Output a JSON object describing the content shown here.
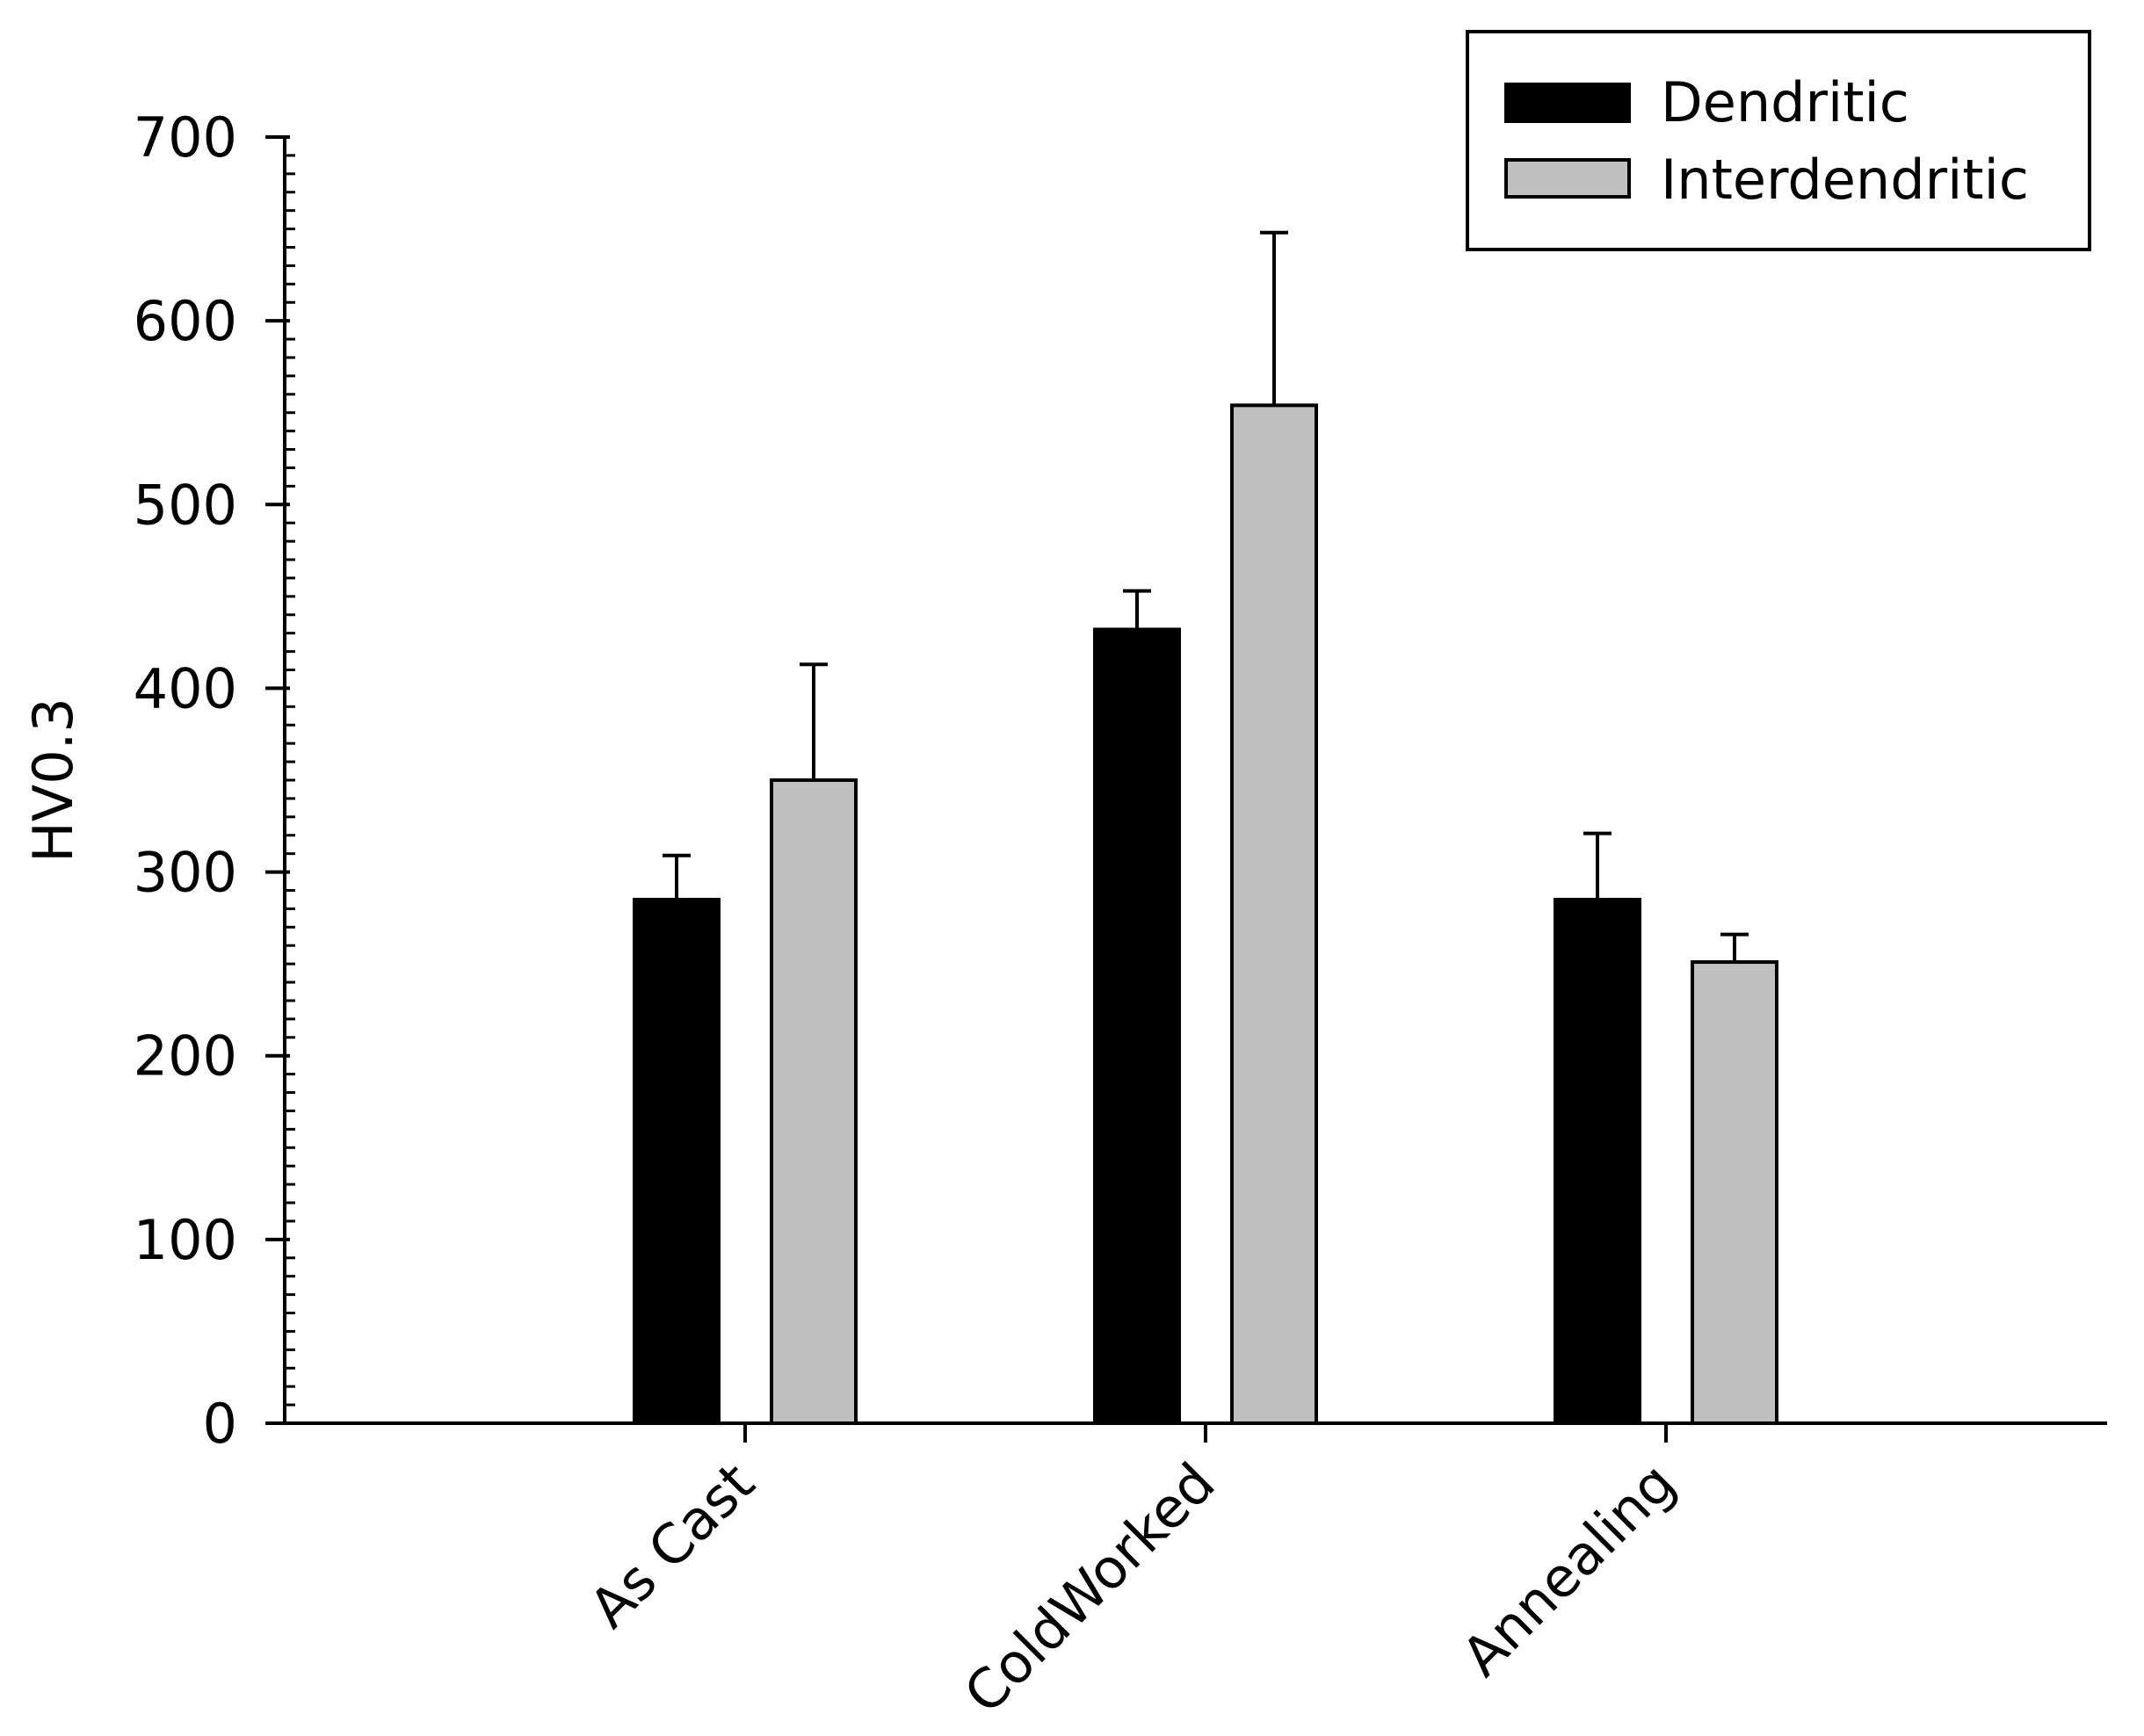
{
  "chart_data": {
    "type": "bar",
    "title": "",
    "xlabel": "",
    "ylabel": "HV0.3",
    "ylim": [
      0,
      700
    ],
    "yticks": [
      0,
      100,
      200,
      300,
      400,
      500,
      600,
      700
    ],
    "categories": [
      "As Cast",
      "ColdWorked",
      "Annealing"
    ],
    "series": [
      {
        "name": "Dendritic",
        "color": "#000000",
        "values": [
          285,
          432,
          285
        ],
        "errors": [
          24,
          21,
          36
        ]
      },
      {
        "name": "Interdendritic",
        "color": "#c0c0c0",
        "values": [
          350,
          554,
          251
        ],
        "errors": [
          63,
          94,
          15
        ]
      }
    ],
    "legend": {
      "position": "top-right"
    },
    "grid": false
  }
}
